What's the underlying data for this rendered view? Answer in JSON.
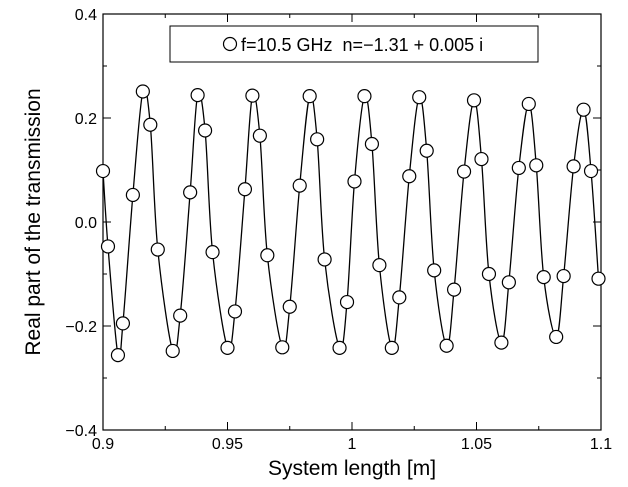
{
  "chart_data": {
    "type": "scatter",
    "xlabel": "System length [m]",
    "ylabel": "Real part of the transmission",
    "xlim": [
      0.9,
      1.1
    ],
    "ylim": [
      -0.4,
      0.4
    ],
    "xticks": [
      0.9,
      0.95,
      1.0,
      1.05,
      1.1
    ],
    "xtick_labels": [
      "0.9",
      "0.95",
      "1",
      "1.05",
      "1.1"
    ],
    "yticks": [
      -0.4,
      -0.2,
      0.0,
      0.2,
      0.4
    ],
    "ytick_labels": [
      "−0.4",
      "−0.2",
      "0.0",
      "0.2",
      "0.4"
    ],
    "grid": false,
    "legend": {
      "position": "top-center",
      "entries": [
        "f=10.5 GHz  n=−1.31 + 0.005 i"
      ]
    },
    "series": [
      {
        "name": "f=10.5 GHz  n=−1.31 + 0.005 i",
        "marker": "open-circle",
        "line": "smooth",
        "color": "#000000",
        "points": [
          {
            "x": 0.9,
            "y": 0.098
          },
          {
            "x": 0.902,
            "y": -0.047
          },
          {
            "x": 0.906,
            "y": -0.256
          },
          {
            "x": 0.908,
            "y": -0.195
          },
          {
            "x": 0.912,
            "y": 0.052
          },
          {
            "x": 0.916,
            "y": 0.251
          },
          {
            "x": 0.919,
            "y": 0.187
          },
          {
            "x": 0.922,
            "y": -0.053
          },
          {
            "x": 0.928,
            "y": -0.248
          },
          {
            "x": 0.931,
            "y": -0.18
          },
          {
            "x": 0.935,
            "y": 0.057
          },
          {
            "x": 0.938,
            "y": 0.244
          },
          {
            "x": 0.941,
            "y": 0.176
          },
          {
            "x": 0.944,
            "y": -0.058
          },
          {
            "x": 0.95,
            "y": -0.242
          },
          {
            "x": 0.953,
            "y": -0.172
          },
          {
            "x": 0.957,
            "y": 0.063
          },
          {
            "x": 0.96,
            "y": 0.243
          },
          {
            "x": 0.963,
            "y": 0.166
          },
          {
            "x": 0.966,
            "y": -0.064
          },
          {
            "x": 0.972,
            "y": -0.241
          },
          {
            "x": 0.975,
            "y": -0.163
          },
          {
            "x": 0.979,
            "y": 0.07
          },
          {
            "x": 0.983,
            "y": 0.242
          },
          {
            "x": 0.986,
            "y": 0.159
          },
          {
            "x": 0.989,
            "y": -0.072
          },
          {
            "x": 0.995,
            "y": -0.242
          },
          {
            "x": 0.998,
            "y": -0.154
          },
          {
            "x": 1.001,
            "y": 0.078
          },
          {
            "x": 1.005,
            "y": 0.242
          },
          {
            "x": 1.008,
            "y": 0.15
          },
          {
            "x": 1.011,
            "y": -0.083
          },
          {
            "x": 1.016,
            "y": -0.242
          },
          {
            "x": 1.019,
            "y": -0.145
          },
          {
            "x": 1.023,
            "y": 0.088
          },
          {
            "x": 1.027,
            "y": 0.24
          },
          {
            "x": 1.03,
            "y": 0.137
          },
          {
            "x": 1.033,
            "y": -0.093
          },
          {
            "x": 1.038,
            "y": -0.238
          },
          {
            "x": 1.041,
            "y": -0.13
          },
          {
            "x": 1.045,
            "y": 0.097
          },
          {
            "x": 1.049,
            "y": 0.234
          },
          {
            "x": 1.052,
            "y": 0.121
          },
          {
            "x": 1.055,
            "y": -0.1
          },
          {
            "x": 1.06,
            "y": -0.232
          },
          {
            "x": 1.063,
            "y": -0.116
          },
          {
            "x": 1.067,
            "y": 0.104
          },
          {
            "x": 1.071,
            "y": 0.227
          },
          {
            "x": 1.074,
            "y": 0.109
          },
          {
            "x": 1.077,
            "y": -0.106
          },
          {
            "x": 1.082,
            "y": -0.221
          },
          {
            "x": 1.085,
            "y": -0.104
          },
          {
            "x": 1.089,
            "y": 0.107
          },
          {
            "x": 1.093,
            "y": 0.216
          },
          {
            "x": 1.096,
            "y": 0.098
          },
          {
            "x": 1.099,
            "y": -0.109
          }
        ]
      }
    ]
  }
}
